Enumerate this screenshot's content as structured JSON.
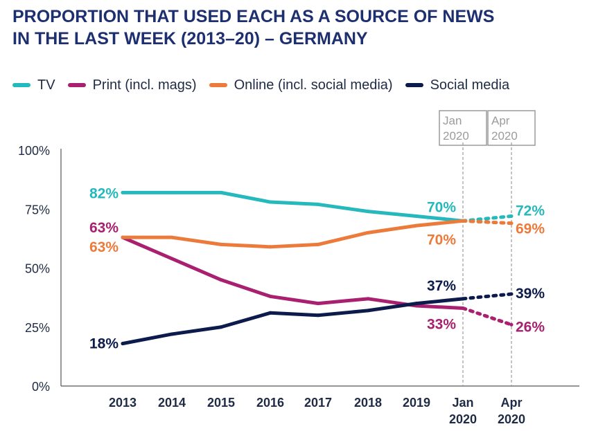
{
  "title_lines": [
    "PROPORTION THAT USED EACH AS A SOURCE OF NEWS",
    "IN THE LAST WEEK (2013–20) – GERMANY"
  ],
  "colors": {
    "tv": "#25b8bd",
    "print": "#a8206f",
    "online": "#ec7a3a",
    "social": "#0d1b4c",
    "axis": "#555555",
    "marker": "#9a9a9a"
  },
  "chart_data": {
    "type": "line",
    "title": "PROPORTION THAT USED EACH AS A SOURCE OF NEWS IN THE LAST WEEK (2013–20) – GERMANY",
    "categories": [
      "2013",
      "2014",
      "2015",
      "2016",
      "2017",
      "2018",
      "2019",
      "Jan 2020",
      "Apr 2020"
    ],
    "category_labels": [
      [
        "2013"
      ],
      [
        "2014"
      ],
      [
        "2015"
      ],
      [
        "2016"
      ],
      [
        "2017"
      ],
      [
        "2018"
      ],
      [
        "2019"
      ],
      [
        "Jan",
        "2020"
      ],
      [
        "Apr",
        "2020"
      ]
    ],
    "y_ticks": [
      "0%",
      "25%",
      "50%",
      "75%",
      "100%"
    ],
    "ylim": [
      0,
      100
    ],
    "markers": [
      {
        "index": 7,
        "lines": [
          "Jan",
          "2020"
        ]
      },
      {
        "index": 8,
        "lines": [
          "Apr",
          "2020"
        ]
      }
    ],
    "dashed_from_index": 7,
    "series": [
      {
        "key": "tv",
        "name": "TV",
        "values": [
          82,
          82,
          82,
          78,
          77,
          74,
          72,
          70,
          72
        ]
      },
      {
        "key": "print",
        "name": "Print (incl. mags)",
        "values": [
          63,
          54,
          45,
          38,
          35,
          37,
          34,
          33,
          26
        ]
      },
      {
        "key": "online",
        "name": "Online (incl. social media)",
        "values": [
          63,
          63,
          60,
          59,
          60,
          65,
          68,
          70,
          69
        ]
      },
      {
        "key": "social",
        "name": "Social media",
        "values": [
          18,
          22,
          25,
          31,
          30,
          32,
          35,
          37,
          39
        ]
      }
    ],
    "data_labels": [
      {
        "series": "tv",
        "index": 0,
        "text": "82%"
      },
      {
        "series": "print",
        "index": 0,
        "text": "63%"
      },
      {
        "series": "online",
        "index": 0,
        "text": "63%"
      },
      {
        "series": "social",
        "index": 0,
        "text": "18%"
      },
      {
        "series": "tv",
        "index": 7,
        "text": "70%"
      },
      {
        "series": "online",
        "index": 7,
        "text": "70%"
      },
      {
        "series": "social",
        "index": 7,
        "text": "37%"
      },
      {
        "series": "print",
        "index": 7,
        "text": "33%"
      },
      {
        "series": "tv",
        "index": 8,
        "text": "72%"
      },
      {
        "series": "online",
        "index": 8,
        "text": "69%"
      },
      {
        "series": "social",
        "index": 8,
        "text": "39%"
      },
      {
        "series": "print",
        "index": 8,
        "text": "26%"
      }
    ]
  }
}
